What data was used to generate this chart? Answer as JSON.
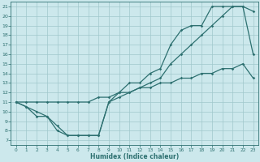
{
  "xlabel": "Humidex (Indice chaleur)",
  "xlim": [
    -0.5,
    23.5
  ],
  "ylim": [
    6.5,
    21.5
  ],
  "xticks": [
    0,
    1,
    2,
    3,
    4,
    5,
    6,
    7,
    8,
    9,
    10,
    11,
    12,
    13,
    14,
    15,
    16,
    17,
    18,
    19,
    20,
    21,
    22,
    23
  ],
  "yticks": [
    7,
    8,
    9,
    10,
    11,
    12,
    13,
    14,
    15,
    16,
    17,
    18,
    19,
    20,
    21
  ],
  "background_color": "#cce8ec",
  "grid_color": "#a0c8cc",
  "line_color": "#2d7070",
  "line1_x": [
    0,
    1,
    2,
    3,
    4,
    5,
    6,
    7,
    8,
    9,
    10,
    11,
    12,
    13,
    14,
    15,
    16,
    17,
    18,
    19,
    20,
    21,
    22,
    23
  ],
  "line1_y": [
    11,
    10.5,
    9.5,
    9.5,
    8.5,
    7.5,
    7.5,
    7.5,
    7.5,
    11,
    12,
    13,
    13,
    14,
    14.5,
    17,
    18.5,
    19,
    19,
    21,
    21,
    21,
    21,
    16
  ],
  "line2_x": [
    0,
    1,
    2,
    3,
    4,
    5,
    6,
    7,
    8,
    9,
    10,
    11,
    12,
    13,
    14,
    15,
    16,
    17,
    18,
    19,
    20,
    21,
    22,
    23
  ],
  "line2_y": [
    11,
    10.5,
    10,
    9.5,
    8,
    7.5,
    7.5,
    7.5,
    7.5,
    11,
    11.5,
    12,
    12.5,
    13,
    13.5,
    15,
    16,
    17,
    18,
    19,
    20,
    21,
    21,
    20.5
  ],
  "line3_x": [
    0,
    1,
    2,
    3,
    4,
    5,
    6,
    7,
    8,
    9,
    10,
    11,
    12,
    13,
    14,
    15,
    16,
    17,
    18,
    19,
    20,
    21,
    22,
    23
  ],
  "line3_y": [
    11,
    11,
    11,
    11,
    11,
    11,
    11,
    11,
    11.5,
    11.5,
    12,
    12,
    12.5,
    12.5,
    13,
    13,
    13.5,
    13.5,
    14,
    14,
    14.5,
    14.5,
    15,
    13.5
  ]
}
